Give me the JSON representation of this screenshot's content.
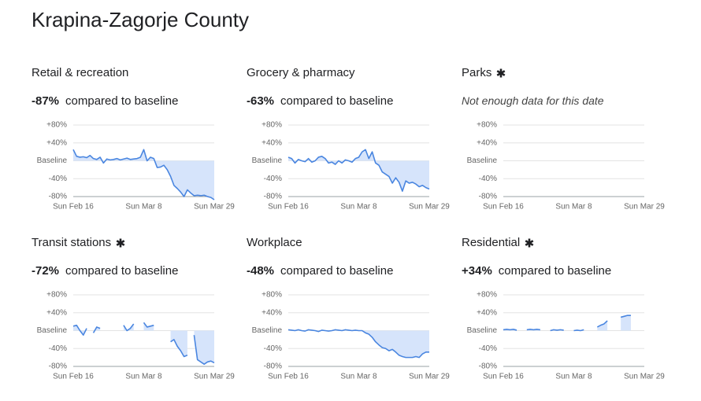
{
  "title": "Krapina-Zagorje County",
  "chart_data": [
    {
      "type": "line",
      "title": "Retail & recreation",
      "asterisk": false,
      "headline_value": "-87%",
      "headline_text": "compared to baseline",
      "categories": [
        "Sun Feb 16",
        null,
        null,
        null,
        null,
        null,
        null,
        null,
        null,
        null,
        null,
        null,
        null,
        null,
        null,
        null,
        null,
        null,
        null,
        null,
        null,
        "Sun Mar 8",
        null,
        null,
        null,
        null,
        null,
        null,
        null,
        null,
        null,
        null,
        null,
        null,
        null,
        null,
        null,
        null,
        null,
        null,
        null,
        null,
        "Sun Mar 29"
      ],
      "values": [
        25,
        10,
        8,
        9,
        7,
        12,
        5,
        3,
        8,
        -5,
        4,
        2,
        3,
        5,
        2,
        4,
        6,
        3,
        4,
        5,
        8,
        25,
        0,
        8,
        5,
        -15,
        -14,
        -10,
        -20,
        -35,
        -55,
        -62,
        -70,
        -80,
        -65,
        -72,
        -78,
        -77,
        -78,
        -77,
        -80,
        -82,
        -87
      ],
      "color": "#4a86e0",
      "fill": "#d6e4fb",
      "ylim": [
        -80,
        80
      ],
      "yticks": [
        {
          "value": -80,
          "label": "-80%"
        },
        {
          "value": -40,
          "label": "-40%"
        },
        {
          "value": 0,
          "label": "Baseline"
        },
        {
          "value": 40,
          "label": "+40%"
        },
        {
          "value": 80,
          "label": "+80%"
        }
      ],
      "grid": true
    },
    {
      "type": "line",
      "title": "Grocery & pharmacy",
      "asterisk": false,
      "headline_value": "-63%",
      "headline_text": "compared to baseline",
      "categories": [
        "Sun Feb 16",
        null,
        null,
        null,
        null,
        null,
        null,
        null,
        null,
        null,
        null,
        null,
        null,
        null,
        null,
        null,
        null,
        null,
        null,
        null,
        null,
        "Sun Mar 8",
        null,
        null,
        null,
        null,
        null,
        null,
        null,
        null,
        null,
        null,
        null,
        null,
        null,
        null,
        null,
        null,
        null,
        null,
        null,
        null,
        "Sun Mar 29"
      ],
      "values": [
        8,
        5,
        -5,
        3,
        0,
        -2,
        5,
        -3,
        0,
        8,
        10,
        5,
        -5,
        -3,
        -8,
        0,
        -5,
        2,
        0,
        -3,
        5,
        8,
        20,
        25,
        5,
        20,
        -5,
        -10,
        -25,
        -30,
        -35,
        -50,
        -38,
        -48,
        -68,
        -45,
        -50,
        -48,
        -52,
        -58,
        -55,
        -60,
        -63
      ],
      "color": "#4a86e0",
      "fill": "#d6e4fb",
      "ylim": [
        -80,
        80
      ],
      "yticks": [
        {
          "value": -80,
          "label": "-80%"
        },
        {
          "value": -40,
          "label": "-40%"
        },
        {
          "value": 0,
          "label": "Baseline"
        },
        {
          "value": 40,
          "label": "+40%"
        },
        {
          "value": 80,
          "label": "+80%"
        }
      ],
      "grid": true
    },
    {
      "type": "line",
      "title": "Parks",
      "asterisk": true,
      "note": "Not enough data for this date",
      "categories": [
        "Sun Feb 16",
        null,
        null,
        null,
        null,
        null,
        null,
        null,
        null,
        null,
        null,
        null,
        null,
        null,
        null,
        null,
        null,
        null,
        null,
        null,
        null,
        "Sun Mar 8",
        null,
        null,
        null,
        null,
        null,
        null,
        null,
        null,
        null,
        null,
        null,
        null,
        null,
        null,
        null,
        null,
        null,
        null,
        null,
        null,
        "Sun Mar 29"
      ],
      "color": "#4a86e0",
      "fill": "#d6e4fb",
      "ylim": [
        -80,
        80
      ],
      "yticks": [
        {
          "value": -80,
          "label": "-80%"
        },
        {
          "value": -40,
          "label": "-40%"
        },
        {
          "value": 0,
          "label": "Baseline"
        },
        {
          "value": 40,
          "label": "+40%"
        },
        {
          "value": 80,
          "label": "+80%"
        }
      ],
      "grid": true
    },
    {
      "type": "line",
      "title": "Transit stations",
      "asterisk": true,
      "headline_value": "-72%",
      "headline_text": "compared to baseline",
      "categories": [
        "Sun Feb 16",
        null,
        null,
        null,
        null,
        null,
        null,
        null,
        null,
        null,
        null,
        null,
        null,
        null,
        null,
        null,
        null,
        null,
        null,
        null,
        null,
        "Sun Mar 8",
        null,
        null,
        null,
        null,
        null,
        null,
        null,
        null,
        null,
        null,
        null,
        null,
        null,
        null,
        null,
        null,
        null,
        null,
        null,
        null,
        "Sun Mar 29"
      ],
      "values": [
        10,
        12,
        0,
        -10,
        5,
        null,
        -5,
        8,
        5,
        null,
        null,
        null,
        null,
        null,
        null,
        12,
        0,
        5,
        15,
        null,
        null,
        18,
        8,
        10,
        12,
        null,
        null,
        null,
        null,
        -25,
        -20,
        -35,
        -45,
        -58,
        -55,
        null,
        -10,
        -65,
        -70,
        -75,
        -70,
        -68,
        -72
      ],
      "color": "#4a86e0",
      "fill": "#d6e4fb",
      "ylim": [
        -80,
        80
      ],
      "yticks": [
        {
          "value": -80,
          "label": "-80%"
        },
        {
          "value": -40,
          "label": "-40%"
        },
        {
          "value": 0,
          "label": "Baseline"
        },
        {
          "value": 40,
          "label": "+40%"
        },
        {
          "value": 80,
          "label": "+80%"
        }
      ],
      "grid": true
    },
    {
      "type": "line",
      "title": "Workplace",
      "asterisk": false,
      "headline_value": "-48%",
      "headline_text": "compared to baseline",
      "categories": [
        "Sun Feb 16",
        null,
        null,
        null,
        null,
        null,
        null,
        null,
        null,
        null,
        null,
        null,
        null,
        null,
        null,
        null,
        null,
        null,
        null,
        null,
        null,
        "Sun Mar 8",
        null,
        null,
        null,
        null,
        null,
        null,
        null,
        null,
        null,
        null,
        null,
        null,
        null,
        null,
        null,
        null,
        null,
        null,
        null,
        null,
        "Sun Mar 29"
      ],
      "values": [
        2,
        1,
        0,
        2,
        0,
        -1,
        2,
        1,
        0,
        -2,
        1,
        0,
        -1,
        0,
        2,
        1,
        0,
        2,
        1,
        0,
        1,
        0,
        0,
        -5,
        -8,
        -15,
        -25,
        -32,
        -38,
        -40,
        -45,
        -42,
        -48,
        -55,
        -58,
        -60,
        -60,
        -60,
        -58,
        -60,
        -52,
        -48,
        -48
      ],
      "color": "#4a86e0",
      "fill": "#d6e4fb",
      "ylim": [
        -80,
        80
      ],
      "yticks": [
        {
          "value": -80,
          "label": "-80%"
        },
        {
          "value": -40,
          "label": "-40%"
        },
        {
          "value": 0,
          "label": "Baseline"
        },
        {
          "value": 40,
          "label": "+40%"
        },
        {
          "value": 80,
          "label": "+80%"
        }
      ],
      "grid": true
    },
    {
      "type": "line",
      "title": "Residential",
      "asterisk": true,
      "headline_value": "+34%",
      "headline_text": "compared to baseline",
      "categories": [
        "Sun Feb 16",
        null,
        null,
        null,
        null,
        null,
        null,
        null,
        null,
        null,
        null,
        null,
        null,
        null,
        null,
        null,
        null,
        null,
        null,
        null,
        null,
        "Sun Mar 8",
        null,
        null,
        null,
        null,
        null,
        null,
        null,
        null,
        null,
        null,
        null,
        null,
        null,
        null,
        null,
        null,
        null,
        null,
        null,
        null,
        "Sun Mar 29"
      ],
      "values": [
        2,
        3,
        2,
        3,
        1,
        null,
        null,
        2,
        3,
        2,
        3,
        2,
        null,
        null,
        0,
        2,
        1,
        2,
        1,
        null,
        null,
        0,
        1,
        0,
        2,
        null,
        null,
        null,
        8,
        12,
        15,
        22,
        null,
        null,
        null,
        30,
        32,
        34,
        34,
        null,
        null,
        null,
        null
      ],
      "color": "#4a86e0",
      "fill": "#d6e4fb",
      "ylim": [
        -80,
        80
      ],
      "yticks": [
        {
          "value": -80,
          "label": "-80%"
        },
        {
          "value": -40,
          "label": "-40%"
        },
        {
          "value": 0,
          "label": "Baseline"
        },
        {
          "value": 40,
          "label": "+40%"
        },
        {
          "value": 80,
          "label": "+80%"
        }
      ],
      "grid": true
    }
  ]
}
